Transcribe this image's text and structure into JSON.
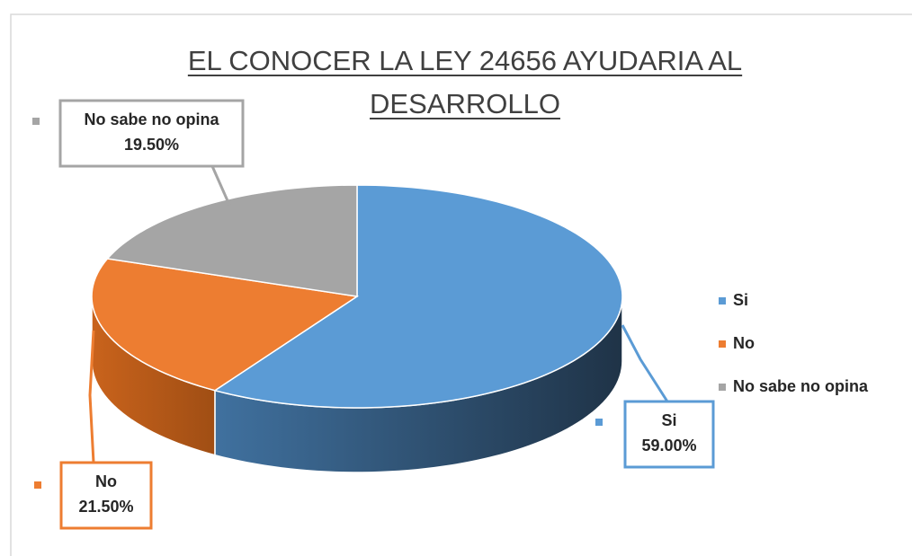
{
  "chart_data": {
    "type": "pie",
    "title": "EL CONOCER LA LEY 24656 AYUDARIA AL DESARROLLO",
    "categories": [
      "Si",
      "No",
      "No sabe no opina"
    ],
    "values": [
      59,
      21.5,
      19.5
    ],
    "value_labels": [
      "59.00%",
      "21.50%",
      "19.50%"
    ],
    "colors": [
      "#5b9bd5",
      "#ed7d31",
      "#a5a5a5"
    ],
    "legend": "right"
  }
}
